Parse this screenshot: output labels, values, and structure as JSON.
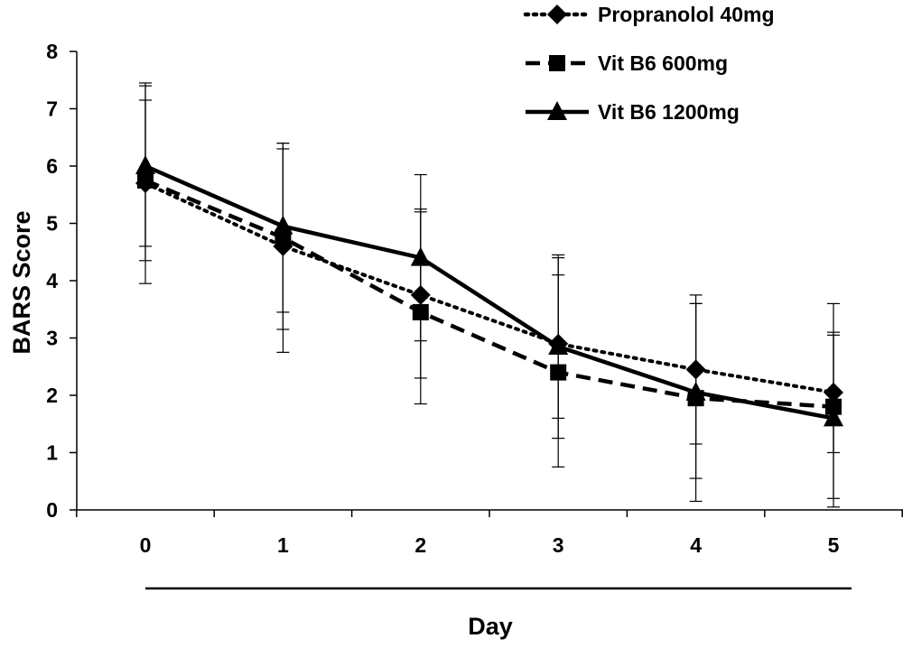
{
  "chart_data": {
    "type": "line",
    "title": "",
    "xlabel": "Day",
    "ylabel": "BARS Score",
    "x": [
      0,
      1,
      2,
      3,
      4,
      5
    ],
    "x_tick_labels": [
      "0",
      "1",
      "2",
      "3",
      "4",
      "5"
    ],
    "y_tick_labels": [
      "0",
      "1",
      "2",
      "3",
      "4",
      "5",
      "6",
      "7",
      "8"
    ],
    "ylim": [
      0,
      8
    ],
    "grid": false,
    "legend_position": "top-right",
    "series": [
      {
        "name": "Propranolol 40mg",
        "line_style": "dotted",
        "marker": "diamond",
        "color": "#000000",
        "values": [
          5.7,
          4.6,
          3.75,
          2.9,
          2.45,
          2.05
        ],
        "error_low": [
          4.35,
          3.15,
          2.3,
          1.6,
          1.15,
          1.0
        ],
        "error_high": [
          7.15,
          6.3,
          5.2,
          4.1,
          3.6,
          3.05
        ]
      },
      {
        "name": "Vit B6 600mg",
        "line_style": "dashed",
        "marker": "square",
        "color": "#000000",
        "values": [
          5.75,
          4.75,
          3.45,
          2.4,
          1.95,
          1.8
        ],
        "error_low": [
          3.95,
          2.75,
          1.85,
          0.75,
          0.15,
          0.05
        ],
        "error_high": [
          7.4,
          6.4,
          5.25,
          4.45,
          3.75,
          3.6
        ]
      },
      {
        "name": "Vit B6 1200mg",
        "line_style": "solid",
        "marker": "triangle",
        "color": "#000000",
        "values": [
          6.0,
          4.95,
          4.4,
          2.85,
          2.05,
          1.6
        ],
        "error_low": [
          4.6,
          3.45,
          2.95,
          1.25,
          0.55,
          0.2
        ],
        "error_high": [
          7.45,
          6.4,
          5.85,
          4.4,
          3.6,
          3.1
        ]
      }
    ]
  }
}
